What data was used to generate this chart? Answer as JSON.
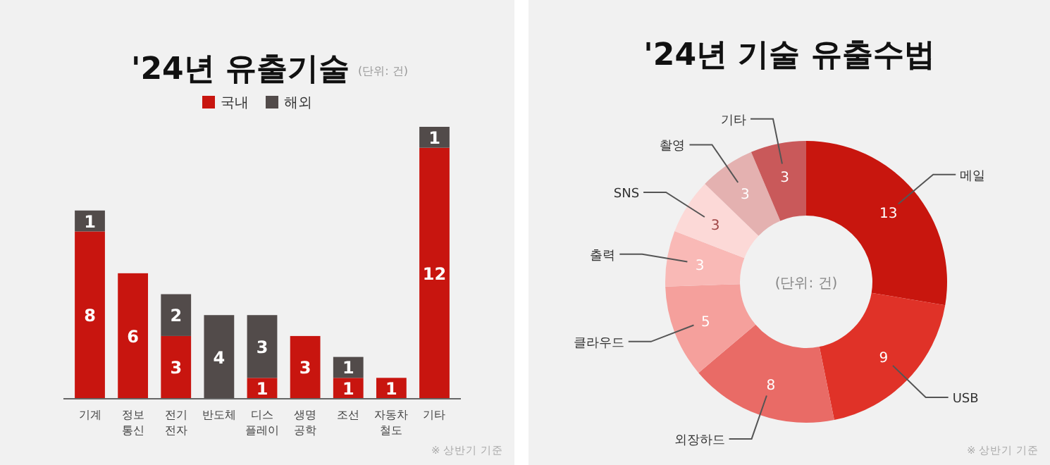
{
  "chart_data": [
    {
      "type": "bar",
      "title": "'24년 유출기술",
      "categories": [
        "기계",
        "정보\n통신",
        "전기\n전자",
        "반도체",
        "디스\n플레이",
        "생명\n공학",
        "조선",
        "자동차\n철도",
        "기타"
      ],
      "stacked": true,
      "legend": "top",
      "data_labels": true,
      "series": [
        {
          "name": "국내",
          "color": "#c8150f",
          "values": [
            8,
            6,
            3,
            null,
            1,
            3,
            1,
            1,
            12
          ]
        },
        {
          "name": "해외",
          "color": "#524b4a",
          "values": [
            1,
            null,
            2,
            4,
            3,
            null,
            1,
            null,
            1
          ]
        }
      ],
      "annotations": [
        "(단위: 건)",
        "※ 상반기 기준"
      ]
    },
    {
      "type": "donut",
      "title": "'24년 기술 유출수법",
      "categories": [
        "메일",
        "USB",
        "외장하드",
        "클라우드",
        "출력",
        "SNS",
        "촬영",
        "기타"
      ],
      "values": [
        13,
        9,
        8,
        5,
        3,
        3,
        3,
        3
      ],
      "colors": [
        "#c8160e",
        "#e03228",
        "#e96b66",
        "#f5a09c",
        "#f9b9b6",
        "#fcd9d7",
        "#e4b1b0",
        "#c9595a"
      ],
      "data_labels": true,
      "annotations": [
        "(단위: 건)",
        "※ 상반기 기준"
      ]
    }
  ]
}
